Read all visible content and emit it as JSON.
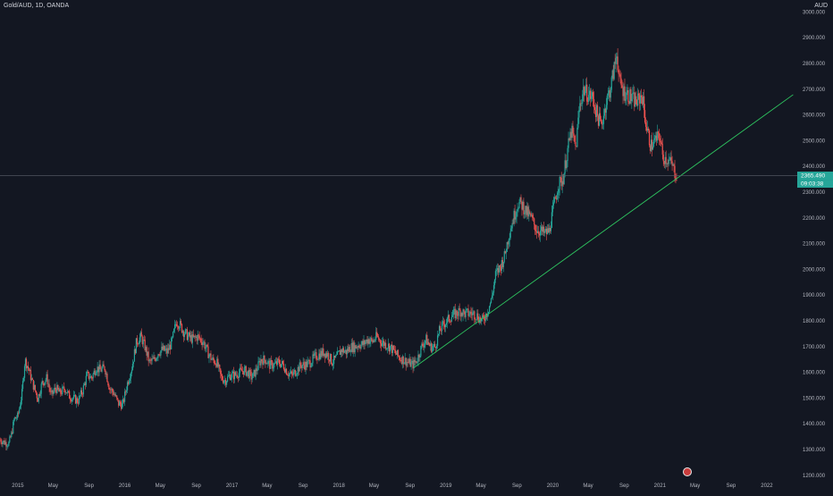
{
  "header": {
    "title": "Gold/AUD, 1D, OANDA",
    "currency": "AUD"
  },
  "price_tags": {
    "last_price": "2365.490",
    "countdown": "09:03:38"
  },
  "colors": {
    "background": "#131722",
    "up": "#26a69a",
    "down": "#ef5350",
    "trendline": "#2ec760",
    "axis_text": "#b2b5be"
  },
  "chart_data": {
    "type": "candlestick",
    "title": "Gold/AUD, 1D, OANDA",
    "xlabel": "",
    "ylabel": "AUD",
    "xlim": [
      "2014-11-01",
      "2022-04-15"
    ],
    "ylim": [
      1180,
      3020
    ],
    "y_ticks": [
      1200,
      1300,
      1400,
      1500,
      1600,
      1700,
      1800,
      1900,
      2000,
      2100,
      2200,
      2300,
      2400,
      2500,
      2600,
      2700,
      2800,
      2900,
      3000
    ],
    "y_tick_labels": [
      "1200.000",
      "1300.000",
      "1400.000",
      "1500.000",
      "1600.000",
      "1700.000",
      "1800.000",
      "1900.000",
      "2000.000",
      "2100.000",
      "2200.000",
      "2300.000",
      "2400.000",
      "2500.000",
      "2600.000",
      "2700.000",
      "2800.000",
      "2900.000",
      "3000.000"
    ],
    "x_ticks": [
      {
        "date": "2015-01-01",
        "label": "2015"
      },
      {
        "date": "2015-05-01",
        "label": "May"
      },
      {
        "date": "2015-09-01",
        "label": "Sep"
      },
      {
        "date": "2016-01-01",
        "label": "2016"
      },
      {
        "date": "2016-05-01",
        "label": "May"
      },
      {
        "date": "2016-09-01",
        "label": "Sep"
      },
      {
        "date": "2017-01-01",
        "label": "2017"
      },
      {
        "date": "2017-05-01",
        "label": "May"
      },
      {
        "date": "2017-09-01",
        "label": "Sep"
      },
      {
        "date": "2018-01-01",
        "label": "2018"
      },
      {
        "date": "2018-05-01",
        "label": "May"
      },
      {
        "date": "2018-09-01",
        "label": "Sep"
      },
      {
        "date": "2019-01-01",
        "label": "2019"
      },
      {
        "date": "2019-05-01",
        "label": "May"
      },
      {
        "date": "2019-09-01",
        "label": "Sep"
      },
      {
        "date": "2020-01-01",
        "label": "2020"
      },
      {
        "date": "2020-05-01",
        "label": "May"
      },
      {
        "date": "2020-09-01",
        "label": "Sep"
      },
      {
        "date": "2021-01-01",
        "label": "2021"
      },
      {
        "date": "2021-05-01",
        "label": "May"
      },
      {
        "date": "2021-09-01",
        "label": "Sep"
      },
      {
        "date": "2022-01-01",
        "label": "2022"
      }
    ],
    "grid": false,
    "last_price": 2365.49,
    "series": [
      {
        "name": "",
        "points": [
          [
            "2014-11-01",
            1340
          ],
          [
            "2014-11-15",
            1330
          ],
          [
            "2014-12-01",
            1325
          ],
          [
            "2014-12-10",
            1360
          ],
          [
            "2014-12-20",
            1420
          ],
          [
            "2015-01-01",
            1430
          ],
          [
            "2015-01-15",
            1520
          ],
          [
            "2015-01-25",
            1650
          ],
          [
            "2015-02-05",
            1620
          ],
          [
            "2015-02-20",
            1560
          ],
          [
            "2015-03-10",
            1500
          ],
          [
            "2015-03-25",
            1560
          ],
          [
            "2015-04-10",
            1580
          ],
          [
            "2015-04-25",
            1510
          ],
          [
            "2015-05-10",
            1540
          ],
          [
            "2015-05-25",
            1520
          ],
          [
            "2015-06-10",
            1540
          ],
          [
            "2015-06-25",
            1510
          ],
          [
            "2015-07-10",
            1500
          ],
          [
            "2015-07-25",
            1490
          ],
          [
            "2015-08-10",
            1530
          ],
          [
            "2015-08-25",
            1590
          ],
          [
            "2015-09-10",
            1580
          ],
          [
            "2015-09-25",
            1620
          ],
          [
            "2015-10-10",
            1610
          ],
          [
            "2015-10-25",
            1620
          ],
          [
            "2015-11-10",
            1540
          ],
          [
            "2015-11-25",
            1520
          ],
          [
            "2015-12-10",
            1480
          ],
          [
            "2015-12-25",
            1475
          ],
          [
            "2016-01-10",
            1560
          ],
          [
            "2016-01-25",
            1620
          ],
          [
            "2016-02-10",
            1720
          ],
          [
            "2016-02-25",
            1740
          ],
          [
            "2016-03-10",
            1700
          ],
          [
            "2016-03-25",
            1640
          ],
          [
            "2016-04-10",
            1650
          ],
          [
            "2016-04-25",
            1680
          ],
          [
            "2016-05-10",
            1690
          ],
          [
            "2016-05-25",
            1680
          ],
          [
            "2016-06-10",
            1720
          ],
          [
            "2016-06-25",
            1800
          ],
          [
            "2016-07-05",
            1790
          ],
          [
            "2016-07-20",
            1760
          ],
          [
            "2016-08-05",
            1740
          ],
          [
            "2016-08-20",
            1730
          ],
          [
            "2016-09-05",
            1740
          ],
          [
            "2016-09-25",
            1720
          ],
          [
            "2016-10-10",
            1680
          ],
          [
            "2016-10-25",
            1650
          ],
          [
            "2016-11-10",
            1640
          ],
          [
            "2016-11-25",
            1580
          ],
          [
            "2016-12-10",
            1570
          ],
          [
            "2016-12-25",
            1590
          ],
          [
            "2017-01-10",
            1590
          ],
          [
            "2017-01-25",
            1600
          ],
          [
            "2017-02-10",
            1610
          ],
          [
            "2017-02-25",
            1600
          ],
          [
            "2017-03-10",
            1580
          ],
          [
            "2017-03-25",
            1610
          ],
          [
            "2017-04-10",
            1650
          ],
          [
            "2017-04-25",
            1650
          ],
          [
            "2017-05-10",
            1630
          ],
          [
            "2017-05-25",
            1630
          ],
          [
            "2017-06-10",
            1640
          ],
          [
            "2017-06-25",
            1630
          ],
          [
            "2017-07-10",
            1600
          ],
          [
            "2017-07-25",
            1590
          ],
          [
            "2017-08-10",
            1610
          ],
          [
            "2017-08-25",
            1630
          ],
          [
            "2017-09-10",
            1630
          ],
          [
            "2017-09-25",
            1640
          ],
          [
            "2017-10-10",
            1660
          ],
          [
            "2017-10-25",
            1670
          ],
          [
            "2017-11-10",
            1680
          ],
          [
            "2017-11-25",
            1670
          ],
          [
            "2017-12-10",
            1640
          ],
          [
            "2017-12-25",
            1660
          ],
          [
            "2018-01-10",
            1690
          ],
          [
            "2018-01-25",
            1680
          ],
          [
            "2018-02-10",
            1700
          ],
          [
            "2018-02-25",
            1700
          ],
          [
            "2018-03-10",
            1710
          ],
          [
            "2018-03-25",
            1710
          ],
          [
            "2018-04-10",
            1730
          ],
          [
            "2018-04-25",
            1720
          ],
          [
            "2018-05-10",
            1740
          ],
          [
            "2018-05-25",
            1720
          ],
          [
            "2018-06-10",
            1710
          ],
          [
            "2018-06-25",
            1700
          ],
          [
            "2018-07-10",
            1680
          ],
          [
            "2018-07-25",
            1660
          ],
          [
            "2018-08-10",
            1650
          ],
          [
            "2018-08-25",
            1640
          ],
          [
            "2018-09-10",
            1630
          ],
          [
            "2018-09-25",
            1650
          ],
          [
            "2018-10-10",
            1700
          ],
          [
            "2018-10-25",
            1730
          ],
          [
            "2018-11-10",
            1700
          ],
          [
            "2018-11-25",
            1700
          ],
          [
            "2018-12-10",
            1760
          ],
          [
            "2018-12-25",
            1790
          ],
          [
            "2019-01-05",
            1800
          ],
          [
            "2019-01-20",
            1820
          ],
          [
            "2019-02-05",
            1830
          ],
          [
            "2019-02-20",
            1840
          ],
          [
            "2019-03-05",
            1830
          ],
          [
            "2019-03-20",
            1830
          ],
          [
            "2019-04-05",
            1830
          ],
          [
            "2019-04-20",
            1820
          ],
          [
            "2019-05-05",
            1800
          ],
          [
            "2019-05-20",
            1830
          ],
          [
            "2019-06-05",
            1880
          ],
          [
            "2019-06-20",
            1980
          ],
          [
            "2019-07-05",
            2010
          ],
          [
            "2019-07-20",
            2050
          ],
          [
            "2019-08-05",
            2140
          ],
          [
            "2019-08-20",
            2200
          ],
          [
            "2019-09-05",
            2260
          ],
          [
            "2019-09-20",
            2250
          ],
          [
            "2019-10-05",
            2220
          ],
          [
            "2019-10-20",
            2200
          ],
          [
            "2019-11-05",
            2160
          ],
          [
            "2019-11-20",
            2150
          ],
          [
            "2019-12-05",
            2140
          ],
          [
            "2019-12-20",
            2150
          ],
          [
            "2020-01-05",
            2250
          ],
          [
            "2020-01-20",
            2330
          ],
          [
            "2020-02-05",
            2350
          ],
          [
            "2020-02-20",
            2460
          ],
          [
            "2020-03-05",
            2540
          ],
          [
            "2020-03-20",
            2470
          ],
          [
            "2020-04-01",
            2630
          ],
          [
            "2020-04-15",
            2700
          ],
          [
            "2020-05-01",
            2680
          ],
          [
            "2020-05-15",
            2670
          ],
          [
            "2020-06-01",
            2600
          ],
          [
            "2020-06-15",
            2560
          ],
          [
            "2020-07-01",
            2650
          ],
          [
            "2020-07-15",
            2700
          ],
          [
            "2020-08-01",
            2800
          ],
          [
            "2020-08-07",
            2850
          ],
          [
            "2020-08-15",
            2730
          ],
          [
            "2020-09-01",
            2690
          ],
          [
            "2020-09-15",
            2680
          ],
          [
            "2020-10-01",
            2660
          ],
          [
            "2020-10-15",
            2650
          ],
          [
            "2020-11-01",
            2680
          ],
          [
            "2020-11-15",
            2560
          ],
          [
            "2020-12-01",
            2480
          ],
          [
            "2020-12-15",
            2500
          ],
          [
            "2021-01-01",
            2520
          ],
          [
            "2021-01-10",
            2440
          ],
          [
            "2021-01-25",
            2430
          ],
          [
            "2021-02-10",
            2410
          ],
          [
            "2021-02-20",
            2380
          ],
          [
            "2021-03-01",
            2365
          ]
        ]
      }
    ],
    "trendline": {
      "start": [
        "2018-09-15",
        1620
      ],
      "end": [
        "2022-04-01",
        2680
      ]
    }
  }
}
